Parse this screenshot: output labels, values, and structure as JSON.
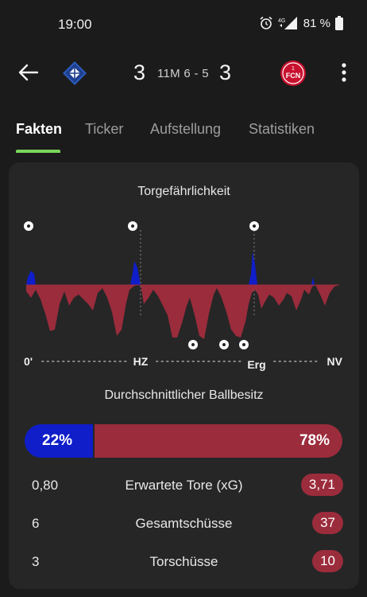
{
  "status_bar": {
    "time": "19:00",
    "network": "4G",
    "battery": "81 %"
  },
  "header": {
    "back_icon": "arrow-left-icon",
    "home_logo": "club-crest-icon",
    "home_score": "3",
    "match_status": "11M 6 - 5",
    "away_score": "3",
    "away_logo_text": "FCN",
    "away_logo_num": "1",
    "more_icon": "more-vertical-icon"
  },
  "tabs": [
    {
      "label": "Fakten",
      "active": true
    },
    {
      "label": "Ticker",
      "active": false
    },
    {
      "label": "Aufstellung",
      "active": false
    },
    {
      "label": "Statistiken",
      "active": false
    }
  ],
  "chart": {
    "title": "Torgefährlichkeit",
    "tick_labels": [
      "0'",
      "HZ",
      "Erg",
      "NV"
    ],
    "colors": {
      "home": "#0f1ec9",
      "away": "#9b2c3c"
    }
  },
  "chart_data": {
    "type": "area",
    "title": "Torgefährlichkeit",
    "x_ticks": [
      "0'",
      "HZ",
      "Erg",
      "NV"
    ],
    "home_goal_markers": 3,
    "away_goal_markers": 3
  },
  "possession": {
    "title": "Durchschnittlicher Ballbesitz",
    "home_pct": 22,
    "away_pct": 78,
    "home_label": "22%",
    "away_label": "78%"
  },
  "stats": [
    {
      "home": "0,80",
      "label": "Erwartete Tore (xG)",
      "away": "3,71"
    },
    {
      "home": "6",
      "label": "Gesamtschüsse",
      "away": "37"
    },
    {
      "home": "3",
      "label": "Torschüsse",
      "away": "10"
    }
  ]
}
